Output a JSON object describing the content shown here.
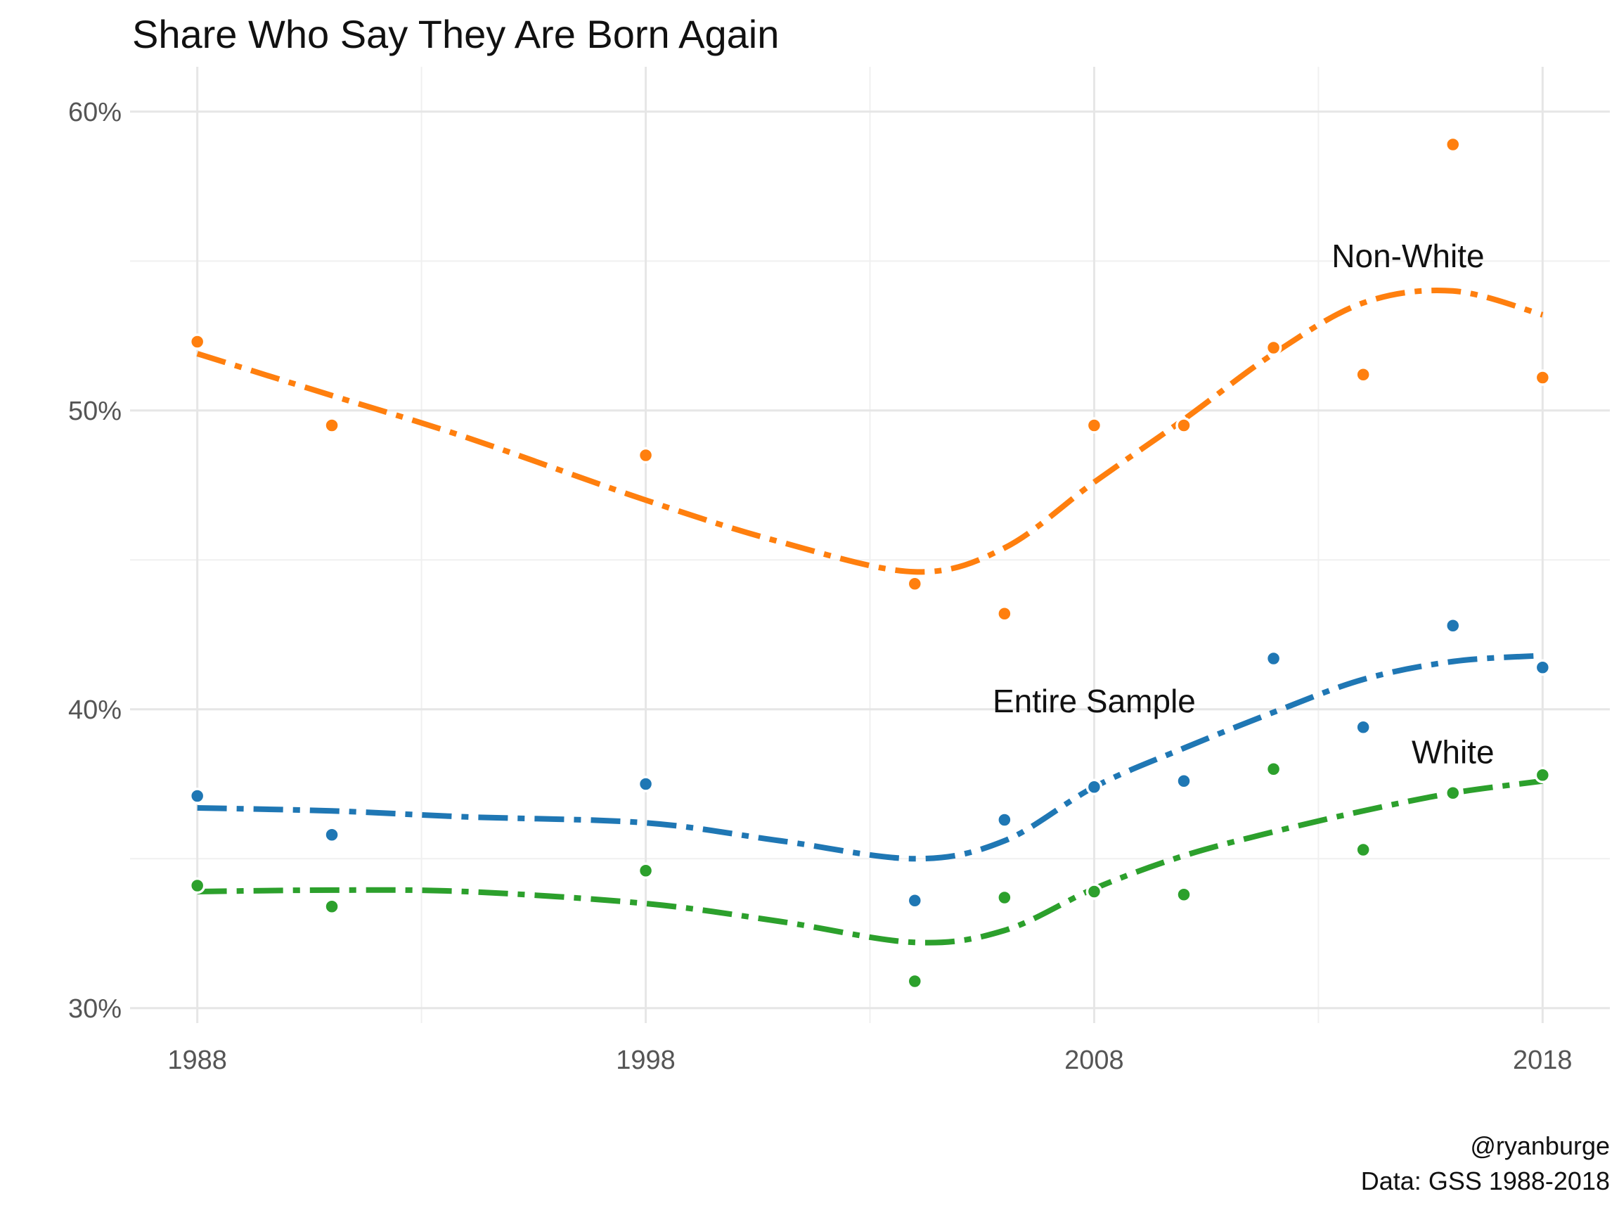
{
  "chart_data": {
    "type": "scatter",
    "title": "Share Who Say They Are Born Again",
    "xlabel": "",
    "ylabel": "",
    "xlim": [
      1986.5,
      2019.5
    ],
    "ylim": [
      29.5,
      61.5
    ],
    "x_ticks": [
      1988,
      1998,
      2008,
      2018
    ],
    "x_minor_ticks": [
      1993,
      2003,
      2013
    ],
    "y_ticks": [
      30,
      40,
      50,
      60
    ],
    "y_minor_ticks": [
      35,
      45,
      55
    ],
    "y_tick_labels": [
      "30%",
      "40%",
      "50%",
      "60%"
    ],
    "x_tick_labels": [
      "1988",
      "1998",
      "2008",
      "2018"
    ],
    "grid": true,
    "legend": "none",
    "series": [
      {
        "name": "Non-White",
        "color": "#ff7f0e",
        "x": [
          1988,
          1991,
          1998,
          2004,
          2006,
          2008,
          2010,
          2012,
          2014,
          2016,
          2018
        ],
        "y": [
          52.3,
          49.5,
          48.5,
          44.2,
          43.2,
          49.5,
          49.5,
          52.1,
          51.2,
          58.9,
          51.1
        ],
        "trend": [
          [
            1988,
            51.9
          ],
          [
            1991,
            50.5
          ],
          [
            1994,
            49.1
          ],
          [
            1998,
            47.0
          ],
          [
            2001,
            45.6
          ],
          [
            2004,
            44.6
          ],
          [
            2006,
            45.4
          ],
          [
            2008,
            47.6
          ],
          [
            2010,
            49.7
          ],
          [
            2012,
            51.9
          ],
          [
            2014,
            53.6
          ],
          [
            2016,
            54.0
          ],
          [
            2018,
            53.2
          ]
        ]
      },
      {
        "name": "Entire Sample",
        "color": "#1f77b4",
        "x": [
          1988,
          1991,
          1998,
          2004,
          2006,
          2008,
          2010,
          2012,
          2014,
          2016,
          2018
        ],
        "y": [
          37.1,
          35.8,
          37.5,
          33.6,
          36.3,
          37.4,
          37.6,
          41.7,
          39.4,
          42.8,
          41.4
        ],
        "trend": [
          [
            1988,
            36.7
          ],
          [
            1991,
            36.6
          ],
          [
            1994,
            36.4
          ],
          [
            1998,
            36.2
          ],
          [
            2001,
            35.6
          ],
          [
            2004,
            35.0
          ],
          [
            2006,
            35.6
          ],
          [
            2008,
            37.4
          ],
          [
            2010,
            38.7
          ],
          [
            2012,
            39.9
          ],
          [
            2014,
            41.0
          ],
          [
            2016,
            41.6
          ],
          [
            2018,
            41.8
          ]
        ]
      },
      {
        "name": "White",
        "color": "#2ca02c",
        "x": [
          1988,
          1991,
          1998,
          2004,
          2006,
          2008,
          2010,
          2012,
          2014,
          2016,
          2018
        ],
        "y": [
          34.1,
          33.4,
          34.6,
          30.9,
          33.7,
          33.9,
          33.8,
          38.0,
          35.3,
          37.2,
          37.8
        ],
        "trend": [
          [
            1988,
            33.9
          ],
          [
            1991,
            33.95
          ],
          [
            1994,
            33.9
          ],
          [
            1998,
            33.5
          ],
          [
            2001,
            32.9
          ],
          [
            2004,
            32.2
          ],
          [
            2006,
            32.6
          ],
          [
            2008,
            34.0
          ],
          [
            2010,
            35.1
          ],
          [
            2012,
            35.9
          ],
          [
            2014,
            36.6
          ],
          [
            2016,
            37.2
          ],
          [
            2018,
            37.6
          ]
        ]
      }
    ],
    "annotations": [
      {
        "text": "Non-White",
        "x": 2015,
        "y": 54.8
      },
      {
        "text": "Entire Sample",
        "x": 2008,
        "y": 39.9
      },
      {
        "text": "White",
        "x": 2016,
        "y": 38.2
      }
    ],
    "caption": [
      "@ryanburge",
      "Data: GSS 1988-2018"
    ]
  }
}
